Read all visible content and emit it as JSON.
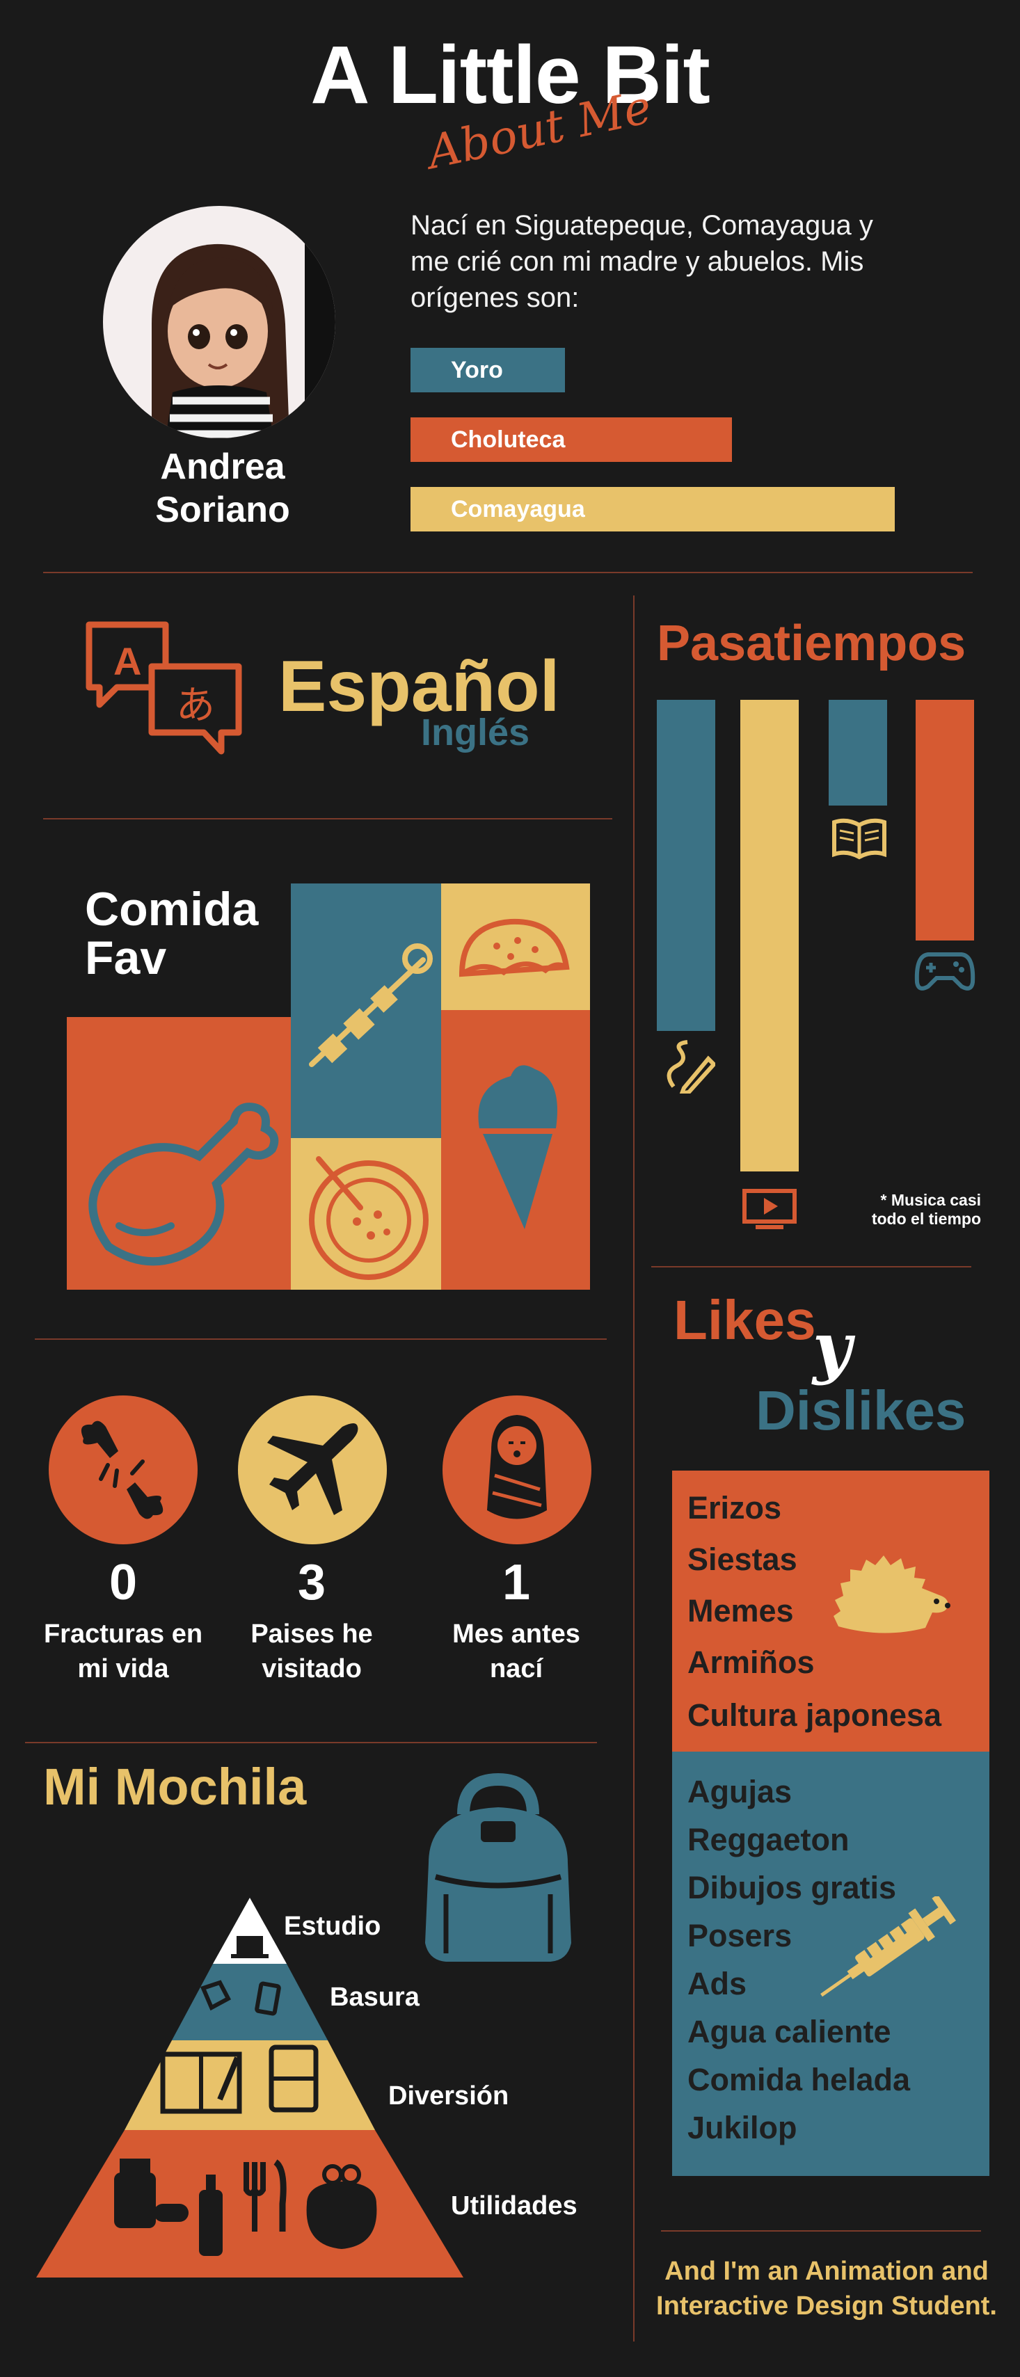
{
  "header": {
    "title": "A Little Bit",
    "subtitle": "About Me"
  },
  "profile": {
    "name_line1": "Andrea",
    "name_line2": "Soriano",
    "intro": "Nací en Siguatepeque, Comayagua y me crié con mi madre y abuelos. Mis orígenes son:",
    "origins": [
      {
        "label": "Yoro",
        "color": "#3b7285"
      },
      {
        "label": "Choluteca",
        "color": "#d65a32"
      },
      {
        "label": "Comayagua",
        "color": "#e8c26a"
      }
    ]
  },
  "languages": {
    "primary": "Español",
    "secondary": "Inglés",
    "icon_glyph_a": "A",
    "icon_glyph_b": "あ"
  },
  "food": {
    "title_line1": "Comida",
    "title_line2": "Fav",
    "icons": [
      "chicken-leg-icon",
      "skewer-icon",
      "taco-icon",
      "soup-bowl-icon",
      "ice-cream-icon"
    ]
  },
  "hobbies": {
    "title": "Pasatiempos",
    "bars": [
      {
        "icon": "pencil-drawing-icon",
        "color": "#3b7285",
        "level": 0.7
      },
      {
        "icon": "video-play-icon",
        "color": "#e8c26a",
        "level": 1.0
      },
      {
        "icon": "book-icon",
        "color": "#3b7285",
        "level": 0.22
      },
      {
        "icon": "gamepad-icon",
        "color": "#d65a32",
        "level": 0.51
      }
    ],
    "note_line1": "* Musica casi",
    "note_line2": "todo el tiempo"
  },
  "stats": [
    {
      "number": "0",
      "label_line1": "Fracturas en",
      "label_line2": "mi vida",
      "icon": "broken-bone-icon",
      "color": "#d65a32"
    },
    {
      "number": "3",
      "label_line1": "Paises he",
      "label_line2": "visitado",
      "icon": "airplane-icon",
      "color": "#e8c26a"
    },
    {
      "number": "1",
      "label_line1": "Mes antes",
      "label_line2": "nací",
      "icon": "swaddled-baby-icon",
      "color": "#d65a32"
    }
  ],
  "likes": {
    "title_likes": "Likes",
    "title_y": "y",
    "title_dislikes": "Dislikes",
    "likes": [
      "Erizos",
      "Siestas",
      "Memes",
      "Armiños",
      "Cultura japonesa"
    ],
    "dislikes": [
      "Agujas",
      "Reggaeton",
      "Dibujos gratis",
      "Posers",
      "Ads",
      "Agua caliente",
      "Comida helada",
      "Jukilop"
    ]
  },
  "backpack": {
    "title": "Mi Mochila",
    "levels": [
      "Estudio",
      "Basura",
      "Diversión",
      "Utilidades"
    ]
  },
  "footer": {
    "line1": "And I'm an Animation and",
    "line2": "Interactive Design Student."
  },
  "colors": {
    "background": "#1a1a1a",
    "orange": "#d65a32",
    "teal": "#3b7285",
    "yellow": "#e8c26a"
  }
}
